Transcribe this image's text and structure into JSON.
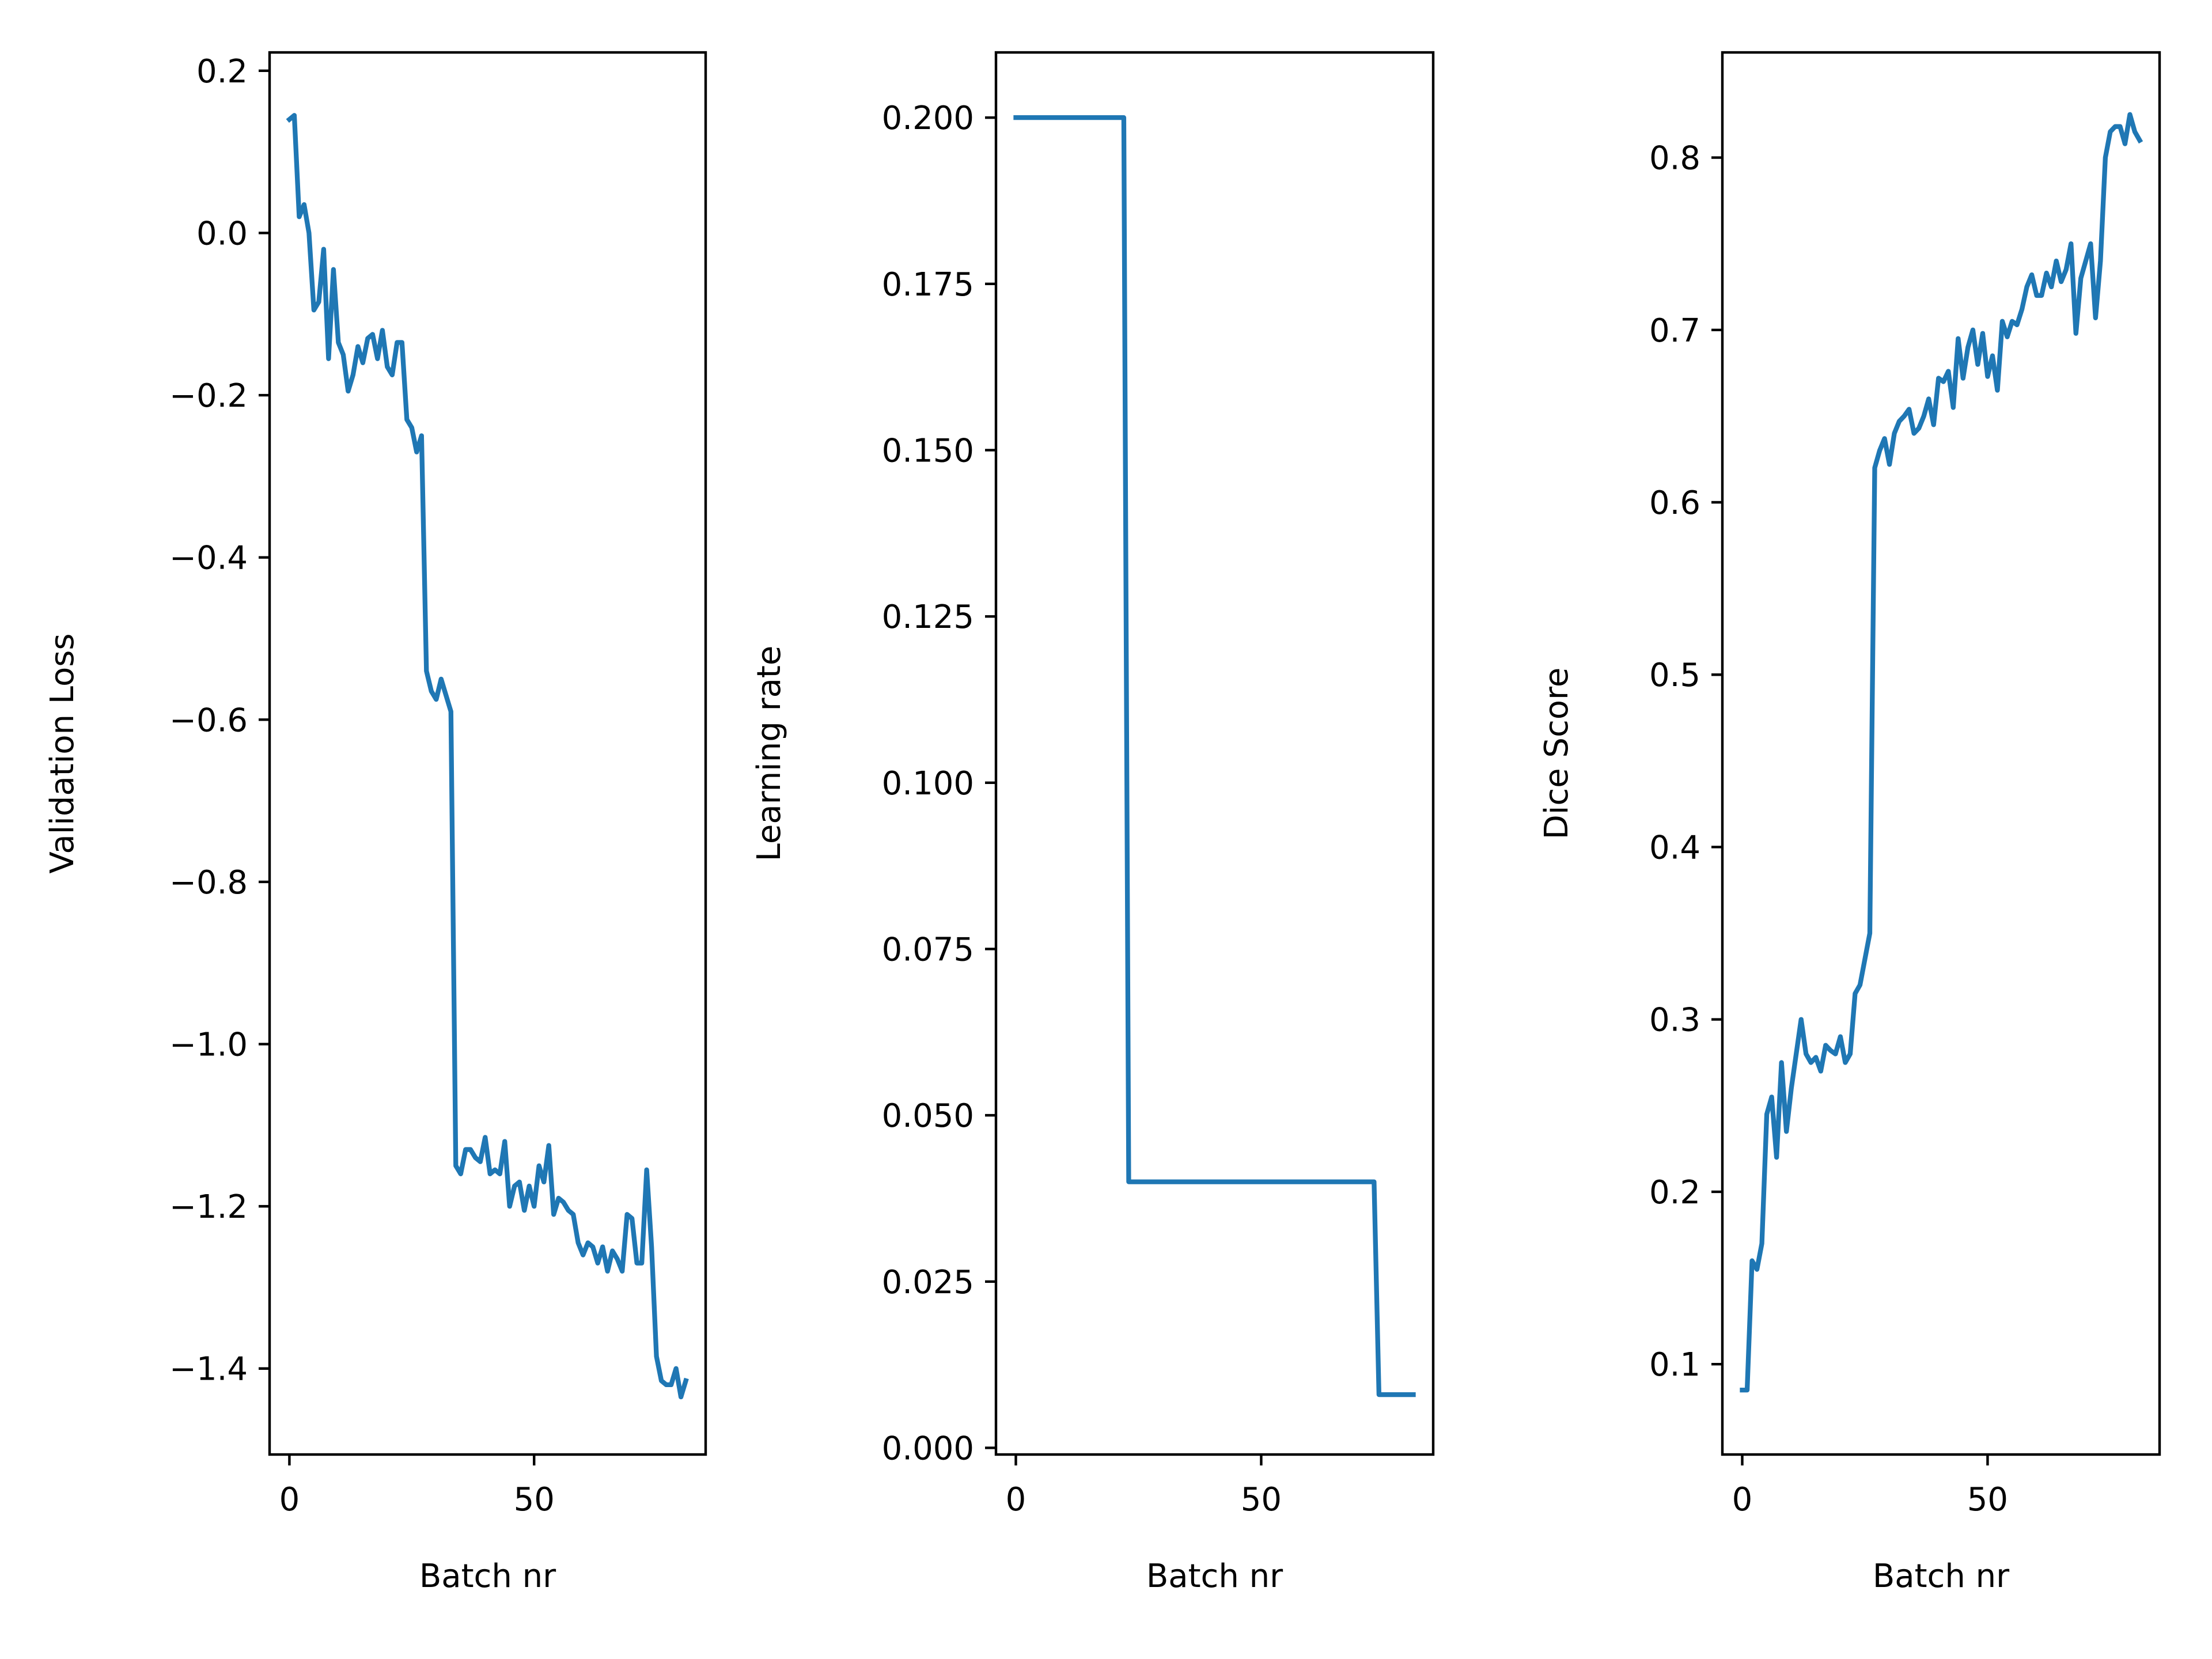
{
  "chart_data": [
    {
      "type": "line",
      "xlabel": "Batch nr",
      "ylabel": "Validation Loss",
      "color": "#1f77b4",
      "x": [
        0,
        1,
        2,
        3,
        4,
        5,
        6,
        7,
        8,
        9,
        10,
        11,
        12,
        13,
        14,
        15,
        16,
        17,
        18,
        19,
        20,
        21,
        22,
        23,
        24,
        25,
        26,
        27,
        28,
        29,
        30,
        31,
        32,
        33,
        34,
        35,
        36,
        37,
        38,
        39,
        40,
        41,
        42,
        43,
        44,
        45,
        46,
        47,
        48,
        49,
        50,
        51,
        52,
        53,
        54,
        55,
        56,
        57,
        58,
        59,
        60,
        61,
        62,
        63,
        64,
        65,
        66,
        67,
        68,
        69,
        70,
        71,
        72,
        73,
        74,
        75,
        76,
        77,
        78,
        79,
        80,
        81
      ],
      "values": [
        0.14,
        0.145,
        0.02,
        0.035,
        0.0,
        -0.095,
        -0.085,
        -0.02,
        -0.155,
        -0.045,
        -0.135,
        -0.15,
        -0.195,
        -0.175,
        -0.14,
        -0.16,
        -0.13,
        -0.125,
        -0.155,
        -0.12,
        -0.165,
        -0.175,
        -0.135,
        -0.135,
        -0.23,
        -0.24,
        -0.27,
        -0.25,
        -0.54,
        -0.565,
        -0.575,
        -0.55,
        -0.57,
        -0.59,
        -1.15,
        -1.16,
        -1.13,
        -1.13,
        -1.14,
        -1.145,
        -1.115,
        -1.16,
        -1.155,
        -1.16,
        -1.12,
        -1.2,
        -1.175,
        -1.17,
        -1.205,
        -1.175,
        -1.2,
        -1.15,
        -1.17,
        -1.125,
        -1.21,
        -1.19,
        -1.195,
        -1.205,
        -1.21,
        -1.245,
        -1.26,
        -1.245,
        -1.25,
        -1.27,
        -1.25,
        -1.28,
        -1.255,
        -1.265,
        -1.28,
        -1.21,
        -1.215,
        -1.27,
        -1.27,
        -1.155,
        -1.25,
        -1.385,
        -1.415,
        -1.42,
        -1.42,
        -1.4,
        -1.435,
        -1.415
      ],
      "xlim": [
        -4.05,
        85.05
      ],
      "ylim": [
        -1.506,
        0.2226
      ],
      "xticks": [
        0,
        50
      ],
      "yticks": [
        {
          "value": -1.4,
          "label": "−1.4"
        },
        {
          "value": -1.2,
          "label": "−1.2"
        },
        {
          "value": -1.0,
          "label": "−1.0"
        },
        {
          "value": -0.8,
          "label": "−0.8"
        },
        {
          "value": -0.6,
          "label": "−0.6"
        },
        {
          "value": -0.4,
          "label": "−0.4"
        },
        {
          "value": -0.2,
          "label": "−0.2"
        },
        {
          "value": 0,
          "label": "0.0"
        },
        0.2
      ]
    },
    {
      "type": "line",
      "xlabel": "Batch nr",
      "ylabel": "Learning rate",
      "color": "#1f77b4",
      "x": [
        0,
        1,
        2,
        3,
        4,
        5,
        6,
        7,
        8,
        9,
        10,
        11,
        12,
        13,
        14,
        15,
        16,
        17,
        18,
        19,
        20,
        21,
        22,
        23,
        24,
        25,
        26,
        27,
        28,
        29,
        30,
        31,
        32,
        33,
        34,
        35,
        36,
        37,
        38,
        39,
        40,
        41,
        42,
        43,
        44,
        45,
        46,
        47,
        48,
        49,
        50,
        51,
        52,
        53,
        54,
        55,
        56,
        57,
        58,
        59,
        60,
        61,
        62,
        63,
        64,
        65,
        66,
        67,
        68,
        69,
        70,
        71,
        72,
        73,
        74,
        75,
        76,
        77,
        78,
        79,
        80,
        81
      ],
      "values": [
        0.2,
        0.2,
        0.2,
        0.2,
        0.2,
        0.2,
        0.2,
        0.2,
        0.2,
        0.2,
        0.2,
        0.2,
        0.2,
        0.2,
        0.2,
        0.2,
        0.2,
        0.2,
        0.2,
        0.2,
        0.2,
        0.2,
        0.2,
        0.04,
        0.04,
        0.04,
        0.04,
        0.04,
        0.04,
        0.04,
        0.04,
        0.04,
        0.04,
        0.04,
        0.04,
        0.04,
        0.04,
        0.04,
        0.04,
        0.04,
        0.04,
        0.04,
        0.04,
        0.04,
        0.04,
        0.04,
        0.04,
        0.04,
        0.04,
        0.04,
        0.04,
        0.04,
        0.04,
        0.04,
        0.04,
        0.04,
        0.04,
        0.04,
        0.04,
        0.04,
        0.04,
        0.04,
        0.04,
        0.04,
        0.04,
        0.04,
        0.04,
        0.04,
        0.04,
        0.04,
        0.04,
        0.04,
        0.04,
        0.04,
        0.008,
        0.008,
        0.008,
        0.008,
        0.008,
        0.008,
        0.008,
        0.008
      ],
      "xlim": [
        -4.05,
        85.05
      ],
      "ylim": [
        -0.001,
        0.2098
      ],
      "xticks": [
        0,
        50
      ],
      "yticks": [
        {
          "value": 0,
          "label": "0.000"
        },
        {
          "value": 0.025,
          "label": "0.025"
        },
        {
          "value": 0.05,
          "label": "0.050"
        },
        {
          "value": 0.075,
          "label": "0.075"
        },
        {
          "value": 0.1,
          "label": "0.100"
        },
        {
          "value": 0.125,
          "label": "0.125"
        },
        {
          "value": 0.15,
          "label": "0.150"
        },
        {
          "value": 0.175,
          "label": "0.175"
        },
        {
          "value": 0.2,
          "label": "0.200"
        }
      ]
    },
    {
      "type": "line",
      "xlabel": "Batch nr",
      "ylabel": "Dice Score",
      "color": "#1f77b4",
      "x": [
        0,
        1,
        2,
        3,
        4,
        5,
        6,
        7,
        8,
        9,
        10,
        11,
        12,
        13,
        14,
        15,
        16,
        17,
        18,
        19,
        20,
        21,
        22,
        23,
        24,
        25,
        26,
        27,
        28,
        29,
        30,
        31,
        32,
        33,
        34,
        35,
        36,
        37,
        38,
        39,
        40,
        41,
        42,
        43,
        44,
        45,
        46,
        47,
        48,
        49,
        50,
        51,
        52,
        53,
        54,
        55,
        56,
        57,
        58,
        59,
        60,
        61,
        62,
        63,
        64,
        65,
        66,
        67,
        68,
        69,
        70,
        71,
        72,
        73,
        74,
        75,
        76,
        77,
        78,
        79,
        80,
        81
      ],
      "values": [
        0.085,
        0.085,
        0.16,
        0.155,
        0.17,
        0.245,
        0.255,
        0.22,
        0.275,
        0.235,
        0.26,
        0.28,
        0.3,
        0.28,
        0.275,
        0.278,
        0.27,
        0.285,
        0.282,
        0.28,
        0.29,
        0.275,
        0.28,
        0.315,
        0.32,
        0.335,
        0.35,
        0.62,
        0.63,
        0.637,
        0.622,
        0.64,
        0.647,
        0.65,
        0.654,
        0.64,
        0.643,
        0.65,
        0.66,
        0.645,
        0.672,
        0.67,
        0.676,
        0.655,
        0.695,
        0.672,
        0.69,
        0.7,
        0.68,
        0.698,
        0.673,
        0.685,
        0.665,
        0.705,
        0.696,
        0.705,
        0.703,
        0.712,
        0.725,
        0.732,
        0.72,
        0.72,
        0.733,
        0.725,
        0.74,
        0.728,
        0.735,
        0.75,
        0.698,
        0.73,
        0.74,
        0.75,
        0.707,
        0.74,
        0.8,
        0.815,
        0.818,
        0.818,
        0.808,
        0.825,
        0.815,
        0.81
      ],
      "xlim": [
        -4.05,
        85.05
      ],
      "ylim": [
        0.0476,
        0.861
      ],
      "xticks": [
        0,
        50
      ],
      "yticks": [
        0.1,
        0.2,
        0.3,
        0.4,
        0.5,
        0.6,
        0.7,
        0.8
      ]
    }
  ]
}
